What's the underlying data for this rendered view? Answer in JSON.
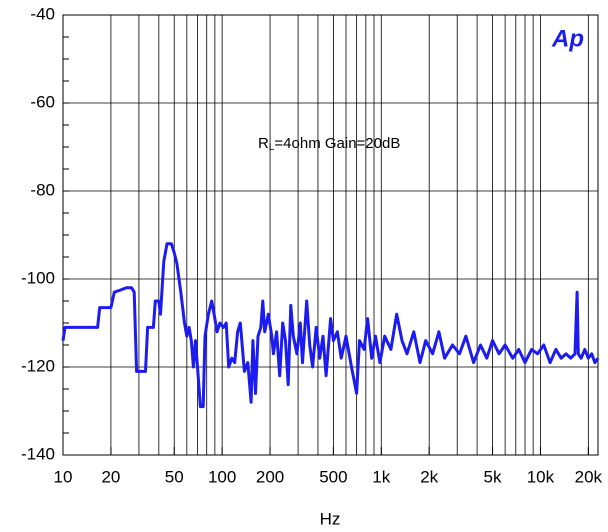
{
  "chart_data": {
    "type": "line",
    "logo": "Ap",
    "annotation": {
      "main": "R",
      "subscript": "L",
      "rest": "=4ohm Gain=20dB"
    },
    "xlabel": "Hz",
    "xscale": "log",
    "grid": true,
    "xlim": [
      10,
      23000
    ],
    "ylim": [
      -140,
      -40
    ],
    "xticks": [
      10,
      20,
      50,
      100,
      200,
      500,
      {
        "value": 1000,
        "label": "1k"
      },
      {
        "value": 2000,
        "label": "2k"
      },
      {
        "value": 5000,
        "label": "5k"
      },
      {
        "value": 10000,
        "label": "10k"
      },
      {
        "value": 20000,
        "label": "20k"
      }
    ],
    "yticks": [
      -140,
      -120,
      -100,
      -80,
      -60,
      -40
    ],
    "x": [
      10,
      10.3,
      12,
      14,
      16.5,
      17,
      19,
      20,
      21,
      23,
      25,
      27,
      28,
      29,
      31,
      33,
      34,
      37,
      38,
      40,
      41,
      43,
      45,
      48,
      50,
      52,
      55,
      58,
      60,
      62,
      64,
      66,
      68,
      70,
      73,
      76,
      78,
      82,
      86,
      89,
      93,
      97,
      102,
      106,
      110,
      115,
      120,
      125,
      130,
      138,
      145,
      152,
      156,
      162,
      168,
      175,
      180,
      185,
      195,
      205,
      210,
      220,
      230,
      240,
      250,
      260,
      270,
      280,
      295,
      310,
      320,
      340,
      355,
      370,
      390,
      410,
      430,
      450,
      480,
      500,
      530,
      560,
      600,
      650,
      700,
      730,
      780,
      820,
      870,
      920,
      980,
      1050,
      1150,
      1250,
      1350,
      1450,
      1600,
      1750,
      1900,
      2100,
      2300,
      2500,
      2800,
      3100,
      3400,
      3800,
      4200,
      4600,
      5000,
      5500,
      6000,
      6700,
      7300,
      8000,
      8800,
      9600,
      10500,
      11500,
      12500,
      13500,
      14500,
      15500,
      16500,
      17000,
      17300,
      18000,
      19000,
      20000,
      21000,
      22000,
      23000
    ],
    "series": [
      {
        "color": "#1c1cf0",
        "values": [
          -114,
          -111,
          -111,
          -111,
          -111,
          -106.5,
          -106.5,
          -106.5,
          -103,
          -102.5,
          -102,
          -102,
          -103,
          -121,
          -121,
          -121,
          -111,
          -111,
          -105,
          -105,
          -108,
          -96,
          -92,
          -92,
          -94,
          -96.5,
          -103,
          -110,
          -113,
          -111,
          -114,
          -120,
          -114,
          -120,
          -129,
          -129,
          -113,
          -108,
          -105,
          -108,
          -112,
          -110,
          -111,
          -110,
          -120,
          -118,
          -119,
          -112,
          -110,
          -121,
          -119,
          -128,
          -114,
          -126,
          -113,
          -111,
          -105,
          -112,
          -108,
          -113,
          -117,
          -112,
          -122,
          -110,
          -114,
          -124,
          -106,
          -113,
          -117,
          -110,
          -119,
          -105,
          -115,
          -120,
          -111,
          -118,
          -113,
          -122,
          -109,
          -114,
          -112,
          -118,
          -113,
          -120,
          -126,
          -114,
          -116,
          -109,
          -118,
          -113,
          -119,
          -113,
          -116,
          -108,
          -114,
          -117,
          -112,
          -119,
          -114,
          -117,
          -112,
          -118,
          -115,
          -117,
          -113,
          -119,
          -115,
          -118,
          -114,
          -117,
          -115,
          -118,
          -116,
          -119,
          -116,
          -117,
          -115,
          -119,
          -116,
          -118,
          -117,
          -118,
          -117,
          -103,
          -117,
          -118,
          -116,
          -118,
          -117,
          -119,
          -118
        ]
      }
    ]
  }
}
